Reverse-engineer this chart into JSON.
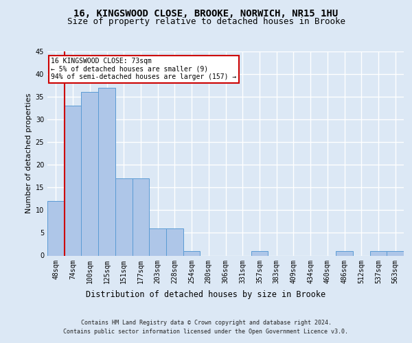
{
  "title1": "16, KINGSWOOD CLOSE, BROOKE, NORWICH, NR15 1HU",
  "title2": "Size of property relative to detached houses in Brooke",
  "xlabel": "Distribution of detached houses by size in Brooke",
  "ylabel": "Number of detached properties",
  "categories": [
    "48sqm",
    "74sqm",
    "100sqm",
    "125sqm",
    "151sqm",
    "177sqm",
    "203sqm",
    "228sqm",
    "254sqm",
    "280sqm",
    "306sqm",
    "331sqm",
    "357sqm",
    "383sqm",
    "409sqm",
    "434sqm",
    "460sqm",
    "486sqm",
    "512sqm",
    "537sqm",
    "563sqm"
  ],
  "values": [
    12,
    33,
    36,
    37,
    17,
    17,
    6,
    6,
    1,
    0,
    0,
    0,
    1,
    0,
    0,
    0,
    0,
    1,
    0,
    1,
    1
  ],
  "bar_color": "#aec6e8",
  "bar_edge_color": "#5a9bd4",
  "ylim": [
    0,
    45
  ],
  "yticks": [
    0,
    5,
    10,
    15,
    20,
    25,
    30,
    35,
    40,
    45
  ],
  "annotation_box_text": "16 KINGSWOOD CLOSE: 73sqm\n← 5% of detached houses are smaller (9)\n94% of semi-detached houses are larger (157) →",
  "vline_color": "#cc0000",
  "box_color": "#cc0000",
  "footer_line1": "Contains HM Land Registry data © Crown copyright and database right 2024.",
  "footer_line2": "Contains public sector information licensed under the Open Government Licence v3.0.",
  "background_color": "#dce8f5",
  "grid_color": "#ffffff",
  "title1_fontsize": 10,
  "title2_fontsize": 9,
  "xlabel_fontsize": 8.5,
  "ylabel_fontsize": 8,
  "tick_fontsize": 7,
  "footer_fontsize": 6,
  "annot_fontsize": 7
}
